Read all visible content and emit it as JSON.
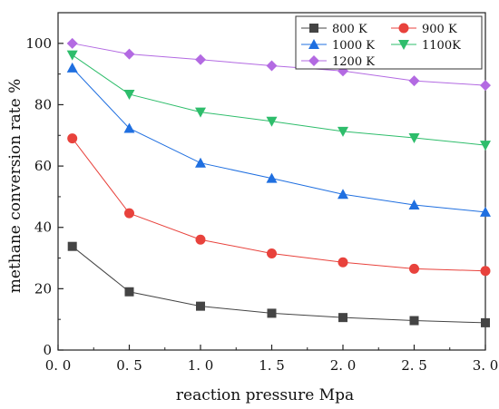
{
  "chart_data": {
    "type": "line",
    "xlabel": "reaction pressure Mpa",
    "ylabel": "methane conversion rate %",
    "xlim": [
      0.0,
      3.0
    ],
    "ylim": [
      0,
      110
    ],
    "x_ticks": [
      "0. 0",
      "0. 5",
      "1. 0",
      "1. 5",
      "2. 0",
      "2. 5",
      "3. 0"
    ],
    "x_tick_values": [
      0.0,
      0.5,
      1.0,
      1.5,
      2.0,
      2.5,
      3.0
    ],
    "y_ticks": [
      "0",
      "20",
      "40",
      "60",
      "80",
      "100"
    ],
    "y_tick_values": [
      0,
      20,
      40,
      60,
      80,
      100
    ],
    "grid": false,
    "legend_position": "top-right",
    "x": [
      0.1,
      0.5,
      1.0,
      1.5,
      2.0,
      2.5,
      3.0
    ],
    "series": [
      {
        "name": "800 K",
        "color": "#444444",
        "marker": "square",
        "values": [
          33.8,
          19.0,
          14.3,
          12.0,
          10.6,
          9.6,
          8.9
        ]
      },
      {
        "name": "900 K",
        "color": "#e8423c",
        "marker": "circle",
        "values": [
          69.0,
          44.6,
          36.0,
          31.5,
          28.6,
          26.5,
          25.8
        ]
      },
      {
        "name": "1000 K",
        "color": "#1f6fe0",
        "marker": "triangle-up",
        "values": [
          92.0,
          72.3,
          61.0,
          56.0,
          50.8,
          47.3,
          45.0
        ]
      },
      {
        "name": "1100K",
        "color": "#2ebd6b",
        "marker": "triangle-down",
        "values": [
          96.2,
          83.4,
          77.6,
          74.6,
          71.3,
          69.2,
          66.8
        ]
      },
      {
        "name": "1200 K",
        "color": "#b36ae2",
        "marker": "diamond",
        "values": [
          100.0,
          96.5,
          94.7,
          92.7,
          91.0,
          87.8,
          86.3
        ]
      }
    ]
  }
}
